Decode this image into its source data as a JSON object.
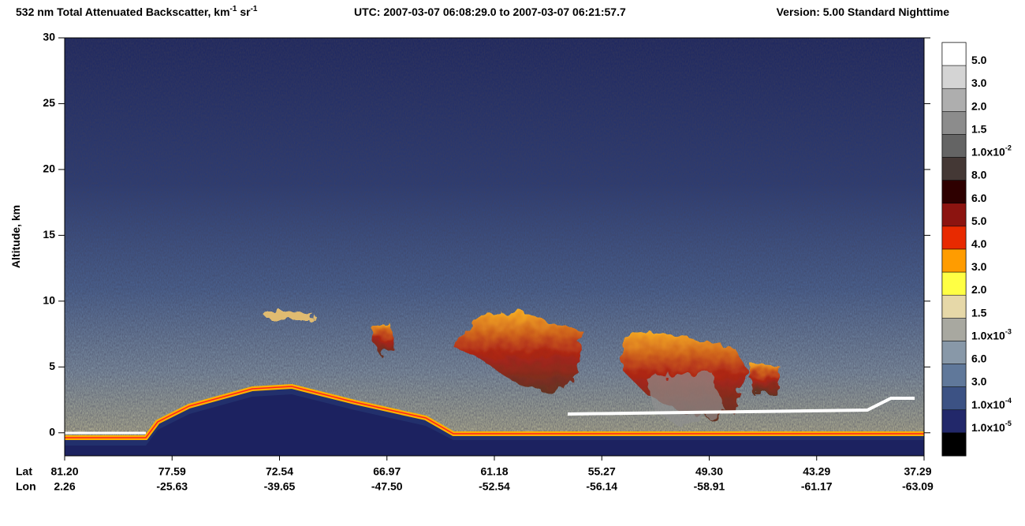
{
  "chart_data": {
    "type": "curtain",
    "title": {
      "parts": [
        "532 nm Total Attenuated Backscatter, km",
        "-1",
        " sr",
        "-1"
      ],
      "utc": "UTC:  2007-03-07 06:08:29.0  to  2007-03-07 06:21:57.7",
      "version": "Version: 5.00  Standard  Nighttime"
    },
    "y_label": "Altitude, km",
    "ylim": [
      -1.75,
      30
    ],
    "yticks": [
      0,
      5,
      10,
      15,
      20,
      25,
      30
    ],
    "x_row_labels": [
      "Lat",
      "Lon"
    ],
    "categories": [
      "81.20",
      "77.59",
      "72.54",
      "66.97",
      "61.18",
      "55.27",
      "49.30",
      "43.29",
      "37.29"
    ],
    "lon": [
      "2.26",
      "-25.63",
      "-39.65",
      "-47.50",
      "-52.54",
      "-56.14",
      "-58.91",
      "-61.17",
      "-63.09"
    ],
    "colorbar": {
      "colors": [
        "#ffffff",
        "#d4d4d4",
        "#aeaeae",
        "#8c8c8c",
        "#646464",
        "#443835",
        "#2e0000",
        "#8c1410",
        "#e82a00",
        "#ff9c00",
        "#ffff44",
        "#e6d8a8",
        "#a8a8a0",
        "#8898a8",
        "#60789a",
        "#3c5284",
        "#22286a",
        "#000000"
      ],
      "labels": [
        {
          "base": "5.0"
        },
        {
          "base": "3.0"
        },
        {
          "base": "2.0"
        },
        {
          "base": "1.5"
        },
        {
          "base": "1.0x10",
          "sup": "-2"
        },
        {
          "base": "8.0"
        },
        {
          "base": "6.0"
        },
        {
          "base": "5.0"
        },
        {
          "base": "4.0"
        },
        {
          "base": "3.0"
        },
        {
          "base": "2.0"
        },
        {
          "base": "1.5"
        },
        {
          "base": "1.0x10",
          "sup": "-3"
        },
        {
          "base": "6.0"
        },
        {
          "base": "3.0"
        },
        {
          "base": "1.0x10",
          "sup": "-4"
        },
        {
          "base": "1.0x10",
          "sup": "-5"
        }
      ]
    }
  }
}
